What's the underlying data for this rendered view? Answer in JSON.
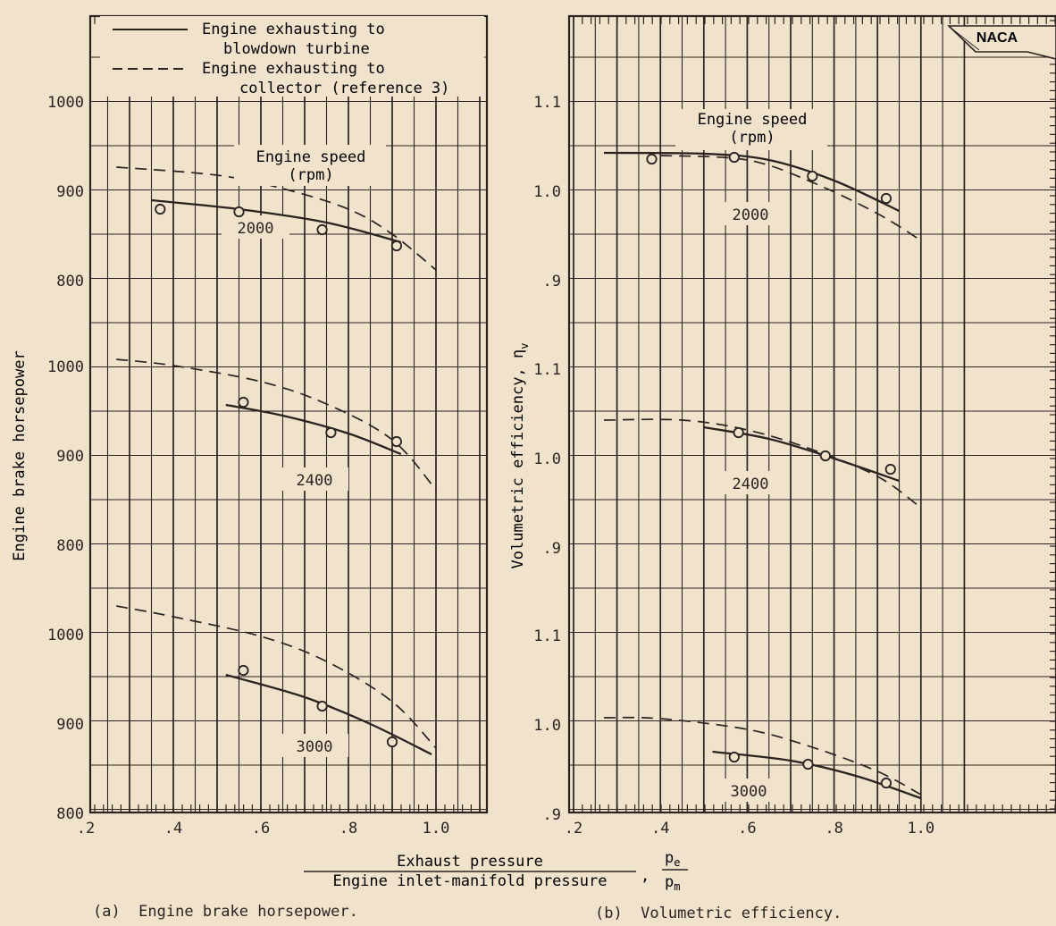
{
  "legend": {
    "solid": [
      "Engine exhausting to",
      "blowdown turbine"
    ],
    "dashed": [
      "Engine exhausting to",
      "collector (reference 3)"
    ]
  },
  "badge": "NACA",
  "speed_header": [
    "Engine speed",
    "(rpm)"
  ],
  "xlabel": {
    "numerator": "Exhaust pressure",
    "denominator": "Engine inlet-manifold pressure",
    "sep": ",",
    "frac_num": "p",
    "frac_num_sub": "e",
    "frac_den": "p",
    "frac_den_sub": "m"
  },
  "captions": {
    "a": "(a)  Engine brake horsepower.",
    "b": "(b)  Volumetric efficiency."
  },
  "colors": {
    "ink": "#2a2320",
    "paper": "#f1e2cc"
  },
  "chart_data": [
    {
      "type": "line",
      "ylabel": "Engine brake horsepower",
      "xlim": [
        0.2,
        1.1
      ],
      "xticks": [
        0.2,
        0.4,
        0.6,
        0.8,
        1.0
      ],
      "xtick_labels": [
        ".2",
        ".4",
        ".6",
        ".8",
        "1.0"
      ],
      "grid": true,
      "legend": "top-left",
      "panels": [
        {
          "speed": "2000",
          "ylim": [
            800,
            1030
          ],
          "yticks": [
            800,
            900,
            1000
          ],
          "series": [
            {
              "name": "Engine exhausting to blowdown turbine",
              "style": "solid",
              "points": [
                [
                  0.35,
                  890
                ],
                [
                  0.55,
                  880
                ],
                [
                  0.75,
                  865
                ],
                [
                  0.92,
                  843
                ]
              ]
            },
            {
              "name": "Engine exhausting to collector (reference 3)",
              "style": "dashed",
              "points": [
                [
                  0.27,
                  927
                ],
                [
                  0.5,
                  918
                ],
                [
                  0.65,
                  903
                ],
                [
                  0.8,
                  880
                ],
                [
                  0.9,
                  852
                ],
                [
                  1.0,
                  812
                ]
              ]
            },
            {
              "name": "Test points",
              "style": "marker",
              "points": [
                [
                  0.37,
                  880
                ],
                [
                  0.55,
                  877
                ],
                [
                  0.74,
                  857
                ],
                [
                  0.91,
                  839
                ]
              ]
            }
          ]
        },
        {
          "speed": "2400",
          "ylim": [
            800,
            1000
          ],
          "yticks": [
            800,
            900,
            1000
          ],
          "series": [
            {
              "name": "Engine exhausting to blowdown turbine",
              "style": "solid",
              "points": [
                [
                  0.52,
                  957
                ],
                [
                  0.65,
                  945
                ],
                [
                  0.8,
                  925
                ],
                [
                  0.92,
                  902
                ]
              ]
            },
            {
              "name": "Engine exhausting to collector (reference 3)",
              "style": "dashed",
              "points": [
                [
                  0.27,
                  1008
                ],
                [
                  0.4,
                  1001
                ],
                [
                  0.6,
                  983
                ],
                [
                  0.75,
                  958
                ],
                [
                  0.9,
                  918
                ],
                [
                  1.0,
                  862
                ]
              ]
            },
            {
              "name": "Test points",
              "style": "marker",
              "points": [
                [
                  0.56,
                  960
                ],
                [
                  0.76,
                  926
                ],
                [
                  0.91,
                  916
                ]
              ]
            }
          ]
        },
        {
          "speed": "3000",
          "ylim": [
            800,
            1000
          ],
          "yticks": [
            800,
            900,
            1000
          ],
          "series": [
            {
              "name": "Engine exhausting to blowdown turbine",
              "style": "solid",
              "points": [
                [
                  0.52,
                  955
                ],
                [
                  0.7,
                  930
                ],
                [
                  0.85,
                  900
                ],
                [
                  0.99,
                  866
                ]
              ]
            },
            {
              "name": "Engine exhausting to collector (reference 3)",
              "style": "dashed",
              "points": [
                [
                  0.27,
                  1032
                ],
                [
                  0.4,
                  1020
                ],
                [
                  0.6,
                  998
                ],
                [
                  0.75,
                  970
                ],
                [
                  0.9,
                  925
                ],
                [
                  1.0,
                  873
                ]
              ]
            },
            {
              "name": "Test points",
              "style": "marker",
              "points": [
                [
                  0.56,
                  960
                ],
                [
                  0.74,
                  920
                ],
                [
                  0.9,
                  880
                ]
              ]
            }
          ]
        }
      ]
    },
    {
      "type": "line",
      "ylabel": "Volumetric efficiency, η",
      "ylabel_sub": "v",
      "xlim": [
        0.2,
        1.1
      ],
      "xticks": [
        0.2,
        0.4,
        0.6,
        0.8,
        1.0
      ],
      "xtick_labels": [
        ".2",
        ".4",
        ".6",
        ".8",
        "1.0"
      ],
      "grid": true,
      "panels": [
        {
          "speed": "2000",
          "ylim": [
            0.85,
            1.2
          ],
          "yticks": [
            0.9,
            1.0,
            1.1
          ],
          "ytick_labels": [
            ".9",
            "1.0",
            "1.1"
          ],
          "series": [
            {
              "name": "Engine exhausting to blowdown turbine",
              "style": "solid",
              "points": [
                [
                  0.27,
                  1.043
                ],
                [
                  0.5,
                  1.042
                ],
                [
                  0.65,
                  1.035
                ],
                [
                  0.8,
                  1.012
                ],
                [
                  0.95,
                  0.978
                ]
              ]
            },
            {
              "name": "Engine exhausting to collector (reference 3)",
              "style": "dashed",
              "points": [
                [
                  0.4,
                  1.04
                ],
                [
                  0.6,
                  1.035
                ],
                [
                  0.75,
                  1.01
                ],
                [
                  0.9,
                  0.975
                ],
                [
                  1.0,
                  0.945
                ]
              ]
            },
            {
              "name": "Test points",
              "style": "marker",
              "points": [
                [
                  0.38,
                  1.036
                ],
                [
                  0.57,
                  1.038
                ],
                [
                  0.75,
                  1.017
                ],
                [
                  0.92,
                  0.992
                ]
              ]
            }
          ]
        },
        {
          "speed": "2400",
          "ylim": [
            0.85,
            1.15
          ],
          "yticks": [
            0.9,
            1.0,
            1.1
          ],
          "ytick_labels": [
            ".9",
            "1.0",
            "1.1"
          ],
          "series": [
            {
              "name": "Engine exhausting to blowdown turbine",
              "style": "solid",
              "points": [
                [
                  0.5,
                  1.035
                ],
                [
                  0.65,
                  1.022
                ],
                [
                  0.8,
                  1.0
                ],
                [
                  0.95,
                  0.975
                ]
              ]
            },
            {
              "name": "Engine exhausting to collector (reference 3)",
              "style": "dashed",
              "points": [
                [
                  0.27,
                  1.043
                ],
                [
                  0.45,
                  1.043
                ],
                [
                  0.6,
                  1.032
                ],
                [
                  0.75,
                  1.01
                ],
                [
                  0.9,
                  0.98
                ],
                [
                  1.0,
                  0.945
                ]
              ]
            },
            {
              "name": "Test points",
              "style": "marker",
              "points": [
                [
                  0.58,
                  1.029
                ],
                [
                  0.78,
                  1.003
                ],
                [
                  0.93,
                  0.988
                ]
              ]
            }
          ]
        },
        {
          "speed": "3000",
          "ylim": [
            0.9,
            1.15
          ],
          "yticks": [
            0.9,
            1.0,
            1.1
          ],
          "ytick_labels": [
            ".9",
            "1.0",
            "1.1"
          ],
          "series": [
            {
              "name": "Engine exhausting to blowdown turbine",
              "style": "solid",
              "points": [
                [
                  0.52,
                  0.97
                ],
                [
                  0.7,
                  0.96
                ],
                [
                  0.85,
                  0.943
                ],
                [
                  1.0,
                  0.918
                ]
              ]
            },
            {
              "name": "Engine exhausting to collector (reference 3)",
              "style": "dashed",
              "points": [
                [
                  0.27,
                  1.008
                ],
                [
                  0.4,
                  1.007
                ],
                [
                  0.6,
                  0.995
                ],
                [
                  0.75,
                  0.975
                ],
                [
                  0.9,
                  0.948
                ],
                [
                  1.0,
                  0.922
                ]
              ]
            },
            {
              "name": "Test points",
              "style": "marker",
              "points": [
                [
                  0.57,
                  0.964
                ],
                [
                  0.74,
                  0.956
                ],
                [
                  0.92,
                  0.935
                ]
              ]
            }
          ]
        }
      ]
    }
  ]
}
